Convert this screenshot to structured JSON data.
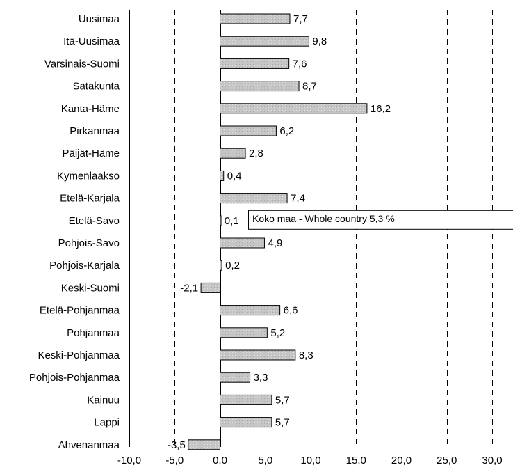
{
  "chart_data": {
    "type": "bar",
    "orientation": "horizontal",
    "categories": [
      "Uusimaa",
      "Itä-Uusimaa",
      "Varsinais-Suomi",
      "Satakunta",
      "Kanta-Häme",
      "Pirkanmaa",
      "Päijät-Häme",
      "Kymenlaakso",
      "Etelä-Karjala",
      "Etelä-Savo",
      "Pohjois-Savo",
      "Pohjois-Karjala",
      "Keski-Suomi",
      "Etelä-Pohjanmaa",
      "Pohjanmaa",
      "Keski-Pohjanmaa",
      "Pohjois-Pohjanmaa",
      "Kainuu",
      "Lappi",
      "Ahvenanmaa"
    ],
    "values": [
      7.7,
      9.8,
      7.6,
      8.7,
      16.2,
      6.2,
      2.8,
      0.4,
      7.4,
      0.1,
      4.9,
      0.2,
      -2.1,
      6.6,
      5.2,
      8.3,
      3.3,
      5.7,
      5.7,
      -3.5
    ],
    "value_labels": [
      "7,7",
      "9,8",
      "7,6",
      "8,7",
      "16,2",
      "6,2",
      "2,8",
      "0,4",
      "7,4",
      "0,1",
      "4,9",
      "0,2",
      "-2,1",
      "6,6",
      "5,2",
      "8,3",
      "3,3",
      "5,7",
      "5,7",
      "-3,5"
    ],
    "xlim": [
      -10,
      30
    ],
    "x_ticks": [
      -10,
      -5,
      0,
      5,
      10,
      15,
      20,
      25,
      30
    ],
    "x_tick_labels": [
      "-10,0",
      "-5,0",
      "0,0",
      "5,0",
      "10,0",
      "15,0",
      "20,0",
      "25,0",
      "30,0"
    ],
    "grid": "vertical-dashed",
    "annotation": {
      "text": "Koko maa - Whole country 5,3 %",
      "category": "Etelä-Savo"
    },
    "colors": {
      "bar_fill": "#c4c4c4",
      "bar_stroke": "#000000",
      "grid": "#000000"
    }
  }
}
